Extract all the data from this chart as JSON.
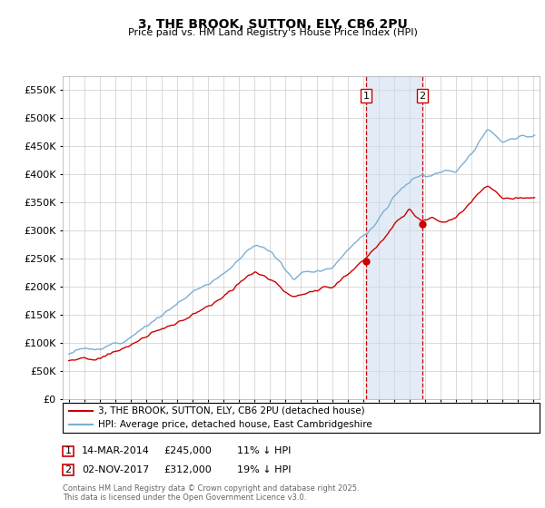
{
  "title": "3, THE BROOK, SUTTON, ELY, CB6 2PU",
  "subtitle": "Price paid vs. HM Land Registry's House Price Index (HPI)",
  "hpi_label": "HPI: Average price, detached house, East Cambridgeshire",
  "prop_label": "3, THE BROOK, SUTTON, ELY, CB6 2PU (detached house)",
  "copyright": "Contains HM Land Registry data © Crown copyright and database right 2025.\nThis data is licensed under the Open Government Licence v3.0.",
  "sale1_date": "14-MAR-2014",
  "sale1_price": "£245,000",
  "sale1_hpi": "11% ↓ HPI",
  "sale2_date": "02-NOV-2017",
  "sale2_price": "£312,000",
  "sale2_hpi": "19% ↓ HPI",
  "ylim": [
    0,
    575000
  ],
  "yticks": [
    0,
    50000,
    100000,
    150000,
    200000,
    250000,
    300000,
    350000,
    400000,
    450000,
    500000,
    550000
  ],
  "hpi_color": "#7bafd4",
  "prop_color": "#cc0000",
  "sale1_x": 2014.2,
  "sale2_x": 2017.83,
  "shade_color": "#ccddef",
  "vline_color": "#cc0000",
  "grid_color": "#cccccc",
  "bg_color": "#ffffff"
}
